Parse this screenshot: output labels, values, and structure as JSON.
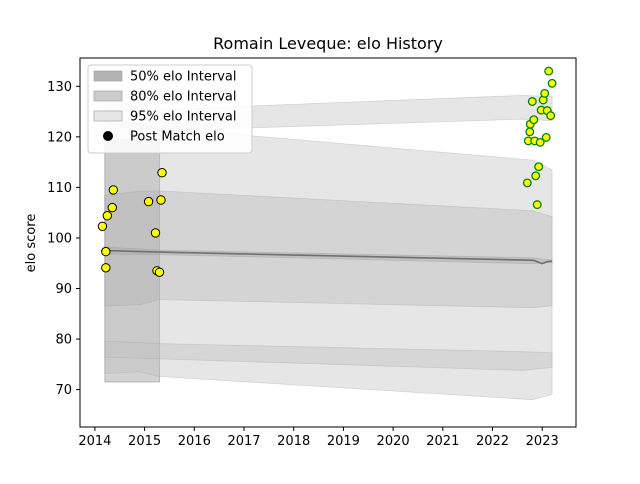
{
  "chart_data": {
    "type": "scatter",
    "title": "Romain Leveque: elo History",
    "xlabel": "",
    "ylabel": "elo score",
    "xlim": [
      2013.7,
      2023.68
    ],
    "ylim": [
      62.6,
      135.6
    ],
    "x_ticks": [
      2014,
      2015,
      2016,
      2017,
      2018,
      2019,
      2020,
      2021,
      2022,
      2023
    ],
    "x_tick_labels": [
      "2014",
      "2015",
      "2016",
      "2017",
      "2018",
      "2019",
      "2020",
      "2021",
      "2022",
      "2023"
    ],
    "y_ticks": [
      70,
      80,
      90,
      100,
      110,
      120,
      130
    ],
    "y_tick_labels": [
      "70",
      "80",
      "90",
      "100",
      "110",
      "120",
      "130"
    ],
    "grid": false,
    "legend_position": "top-left",
    "legend": [
      {
        "label": "50% elo Interval",
        "kind": "patch",
        "color": "#b3b3b3"
      },
      {
        "label": "80% elo Interval",
        "kind": "patch",
        "color": "#cccccc"
      },
      {
        "label": "95% elo Interval",
        "kind": "patch",
        "color": "#e6e6e6"
      },
      {
        "label": "Post Match elo",
        "kind": "marker",
        "color": "#000000"
      }
    ],
    "mean_line": {
      "name": "Mean elo",
      "x": [
        2014.2,
        2015.3,
        2022.8,
        2022.85,
        2023.0,
        2023.1,
        2023.2
      ],
      "y": [
        97.5,
        97.2,
        95.6,
        95.5,
        94.9,
        95.3,
        95.4
      ]
    },
    "bands": [
      {
        "name": "50% elo Interval",
        "level": "50",
        "x": [
          2014.2,
          2015.3,
          2022.8,
          2023.2
        ],
        "upper": [
          98.2,
          97.6,
          96.1,
          95.6
        ],
        "lower": [
          96.8,
          96.7,
          94.9,
          95.2
        ]
      },
      {
        "name": "80% elo Interval",
        "level": "80",
        "x": [
          2014.2,
          2014.9,
          2015.3,
          2022.8,
          2023.2
        ],
        "upper": [
          108.5,
          109.2,
          109.3,
          105.4,
          104.2
        ],
        "lower": [
          86.5,
          86.8,
          87.8,
          86.2,
          86.6
        ]
      },
      {
        "name": "95% elo Interval",
        "level": "95",
        "x": [
          2014.2,
          2014.9,
          2015.3,
          2022.8,
          2023.2
        ],
        "upper": [
          122.5,
          122.9,
          121.8,
          115.4,
          113.5
        ],
        "lower": [
          73.2,
          73.5,
          72.6,
          68.0,
          69.0
        ]
      },
      {
        "name": "95% elo Interval (upper set)",
        "level": "95",
        "x": [
          2014.2,
          2015.3,
          2022.6,
          2023.2
        ],
        "upper": [
          127.2,
          125.4,
          128.2,
          128.0
        ],
        "lower": [
          122.8,
          121.2,
          123.5,
          123.2
        ]
      },
      {
        "name": "95% elo Interval (lower set)",
        "level": "95",
        "x": [
          2014.2,
          2015.3,
          2022.6,
          2023.2
        ],
        "upper": [
          79.6,
          79.1,
          77.5,
          77.3
        ],
        "lower": [
          76.4,
          76.1,
          73.8,
          74.4
        ]
      }
    ],
    "early_band": {
      "x0": 2014.2,
      "x1": 2015.3,
      "upper": 119.5,
      "lower": 71.5
    },
    "series": [
      {
        "name": "Post Match elo",
        "kind": "points",
        "style": "early",
        "fill": "#ffff00",
        "edge": "#000000",
        "points": [
          [
            2014.15,
            102.3
          ],
          [
            2014.22,
            97.3
          ],
          [
            2014.25,
            104.4
          ],
          [
            2014.22,
            94.1
          ],
          [
            2014.35,
            106.0
          ],
          [
            2014.37,
            109.5
          ],
          [
            2015.08,
            107.2
          ],
          [
            2015.22,
            101.0
          ],
          [
            2015.25,
            93.5
          ],
          [
            2015.3,
            93.2
          ],
          [
            2015.33,
            107.5
          ],
          [
            2015.35,
            112.9
          ]
        ]
      },
      {
        "name": "Post Match elo (recent)",
        "kind": "points",
        "style": "recent",
        "fill": "#ffff00",
        "edge": "#008000",
        "points": [
          [
            2022.7,
            110.9
          ],
          [
            2022.72,
            119.2
          ],
          [
            2022.75,
            121.0
          ],
          [
            2022.76,
            122.5
          ],
          [
            2022.8,
            127.0
          ],
          [
            2022.83,
            123.4
          ],
          [
            2022.85,
            119.2
          ],
          [
            2022.87,
            112.3
          ],
          [
            2022.9,
            106.6
          ],
          [
            2022.93,
            114.1
          ],
          [
            2022.96,
            118.9
          ],
          [
            2022.98,
            125.3
          ],
          [
            2023.02,
            127.3
          ],
          [
            2023.05,
            128.6
          ],
          [
            2023.08,
            119.9
          ],
          [
            2023.1,
            125.2
          ],
          [
            2023.13,
            133.0
          ],
          [
            2023.17,
            124.2
          ],
          [
            2023.2,
            130.6
          ]
        ]
      }
    ]
  }
}
